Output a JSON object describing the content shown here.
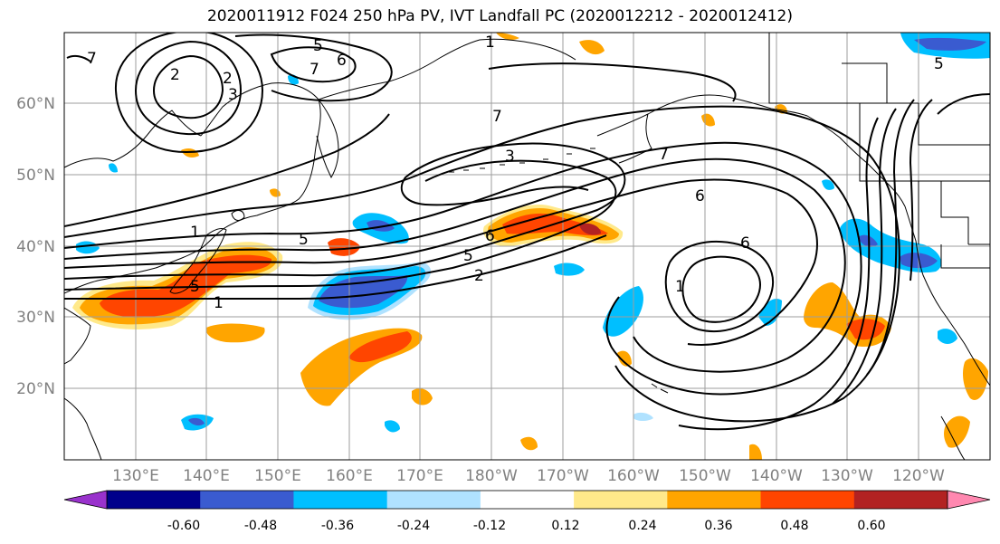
{
  "title": "2020011912 F024 250 hPa PV, IVT Landfall PC (2020012212 - 2020012412)",
  "lat_labels": [
    "60°N",
    "50°N",
    "40°N",
    "30°N",
    "20°N"
  ],
  "lon_labels": [
    "130°E",
    "140°E",
    "150°E",
    "160°E",
    "170°E",
    "180°W",
    "170°W",
    "160°W",
    "150°W",
    "140°W",
    "130°W",
    "120°W"
  ],
  "contour_labels": [
    "1",
    "2",
    "3",
    "5",
    "6",
    "7",
    "5",
    "6",
    "7",
    "1",
    "2",
    "5",
    "6",
    "7",
    "1",
    "2",
    "3",
    "5",
    "6",
    "1",
    "7",
    "5"
  ],
  "colorbar": {
    "colors": [
      "#9932cc",
      "#00008b",
      "#3a5bd0",
      "#00bfff",
      "#b0e2ff",
      "#ffffff",
      "#ffe98a",
      "#ffa500",
      "#ff4500",
      "#b22222",
      "#ff88b0"
    ],
    "ticks": [
      "-0.60",
      "-0.48",
      "-0.36",
      "-0.24",
      "-0.12",
      "0.12",
      "0.24",
      "0.36",
      "0.48",
      "0.60"
    ]
  },
  "colors": {
    "grid": "#9e9e9e",
    "coast": "#000000",
    "contour": "#000000",
    "axis_label": "#808080"
  }
}
